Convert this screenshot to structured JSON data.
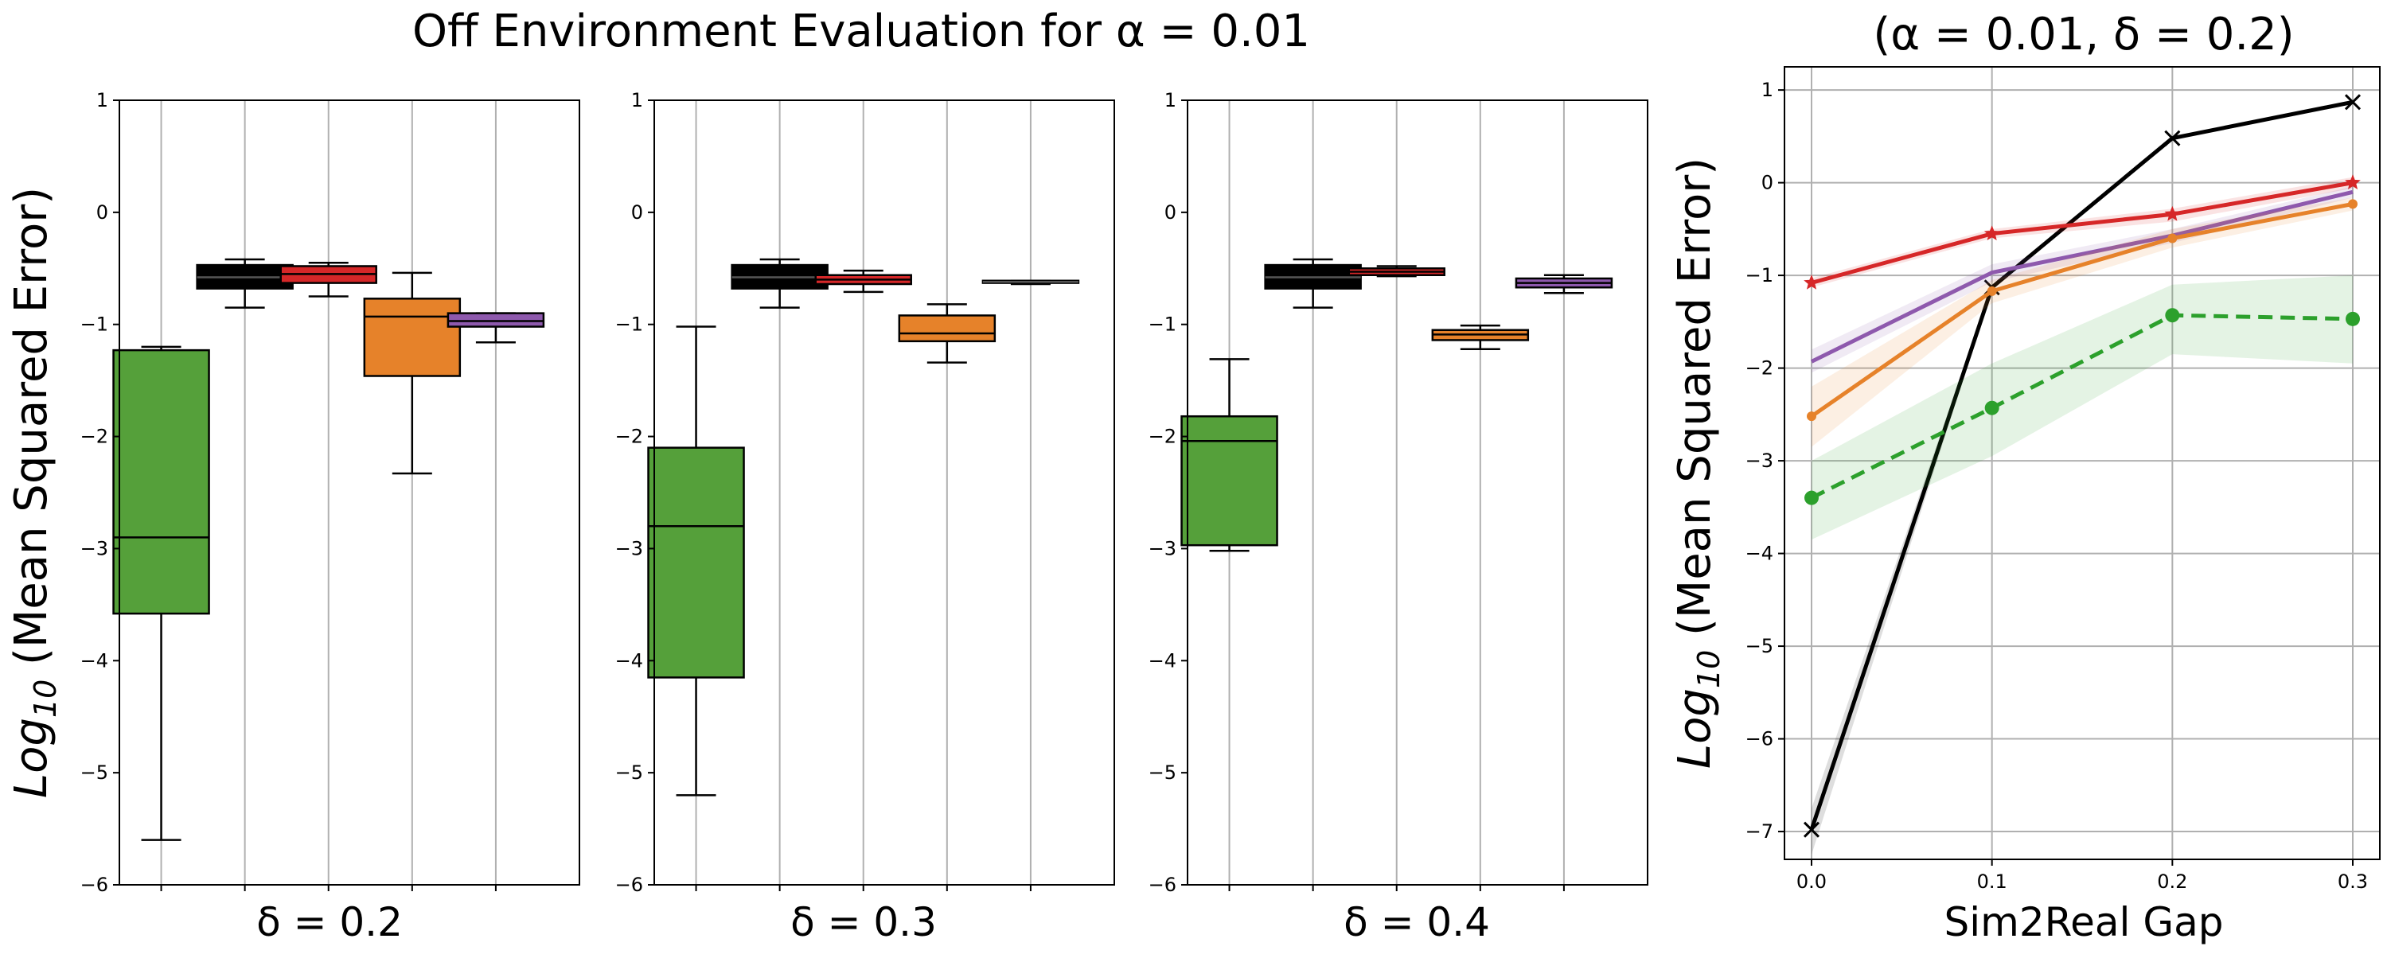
{
  "colors": {
    "black": "#000000",
    "red": "#d62728",
    "orange": "#e6822a",
    "green": "#55a03a",
    "purple": "#8e59ad",
    "grid": "#b0b0b0",
    "green_line": "#2ca02c"
  },
  "suptitle": "Off Environment Evaluation for α = 0.01",
  "chart_data": [
    {
      "type": "box",
      "xlabel": "δ = 0.2",
      "ylabel": "Log10 (Mean Squared Error)",
      "ylim": [
        -6,
        1
      ],
      "yticks": [
        "1",
        "0",
        "−1",
        "−2",
        "−3",
        "−4",
        "−5",
        "−6"
      ],
      "grid": "x",
      "boxes": [
        {
          "color": "green",
          "whislo": -5.6,
          "q1": -3.58,
          "med": -2.9,
          "q3": -1.23,
          "whishi": -1.2
        },
        {
          "color": "black",
          "whislo": -0.85,
          "q1": -0.68,
          "med": -0.58,
          "q3": -0.47,
          "whishi": -0.42
        },
        {
          "color": "red",
          "whislo": -0.75,
          "q1": -0.63,
          "med": -0.55,
          "q3": -0.48,
          "whishi": -0.45
        },
        {
          "color": "orange",
          "whislo": -2.33,
          "q1": -1.46,
          "med": -0.93,
          "q3": -0.77,
          "whishi": -0.54
        },
        {
          "color": "purple",
          "whislo": -1.16,
          "q1": -1.02,
          "med": -0.97,
          "q3": -0.9,
          "whishi": -0.9
        }
      ]
    },
    {
      "type": "box",
      "xlabel": "δ = 0.3",
      "ylim": [
        -6,
        1
      ],
      "yticks": [
        "1",
        "0",
        "−1",
        "−2",
        "−3",
        "−4",
        "−5",
        "−6"
      ],
      "grid": "x",
      "boxes": [
        {
          "color": "green",
          "whislo": -5.2,
          "q1": -4.15,
          "med": -2.8,
          "q3": -2.1,
          "whishi": -1.02
        },
        {
          "color": "black",
          "whislo": -0.85,
          "q1": -0.68,
          "med": -0.58,
          "q3": -0.47,
          "whishi": -0.42
        },
        {
          "color": "red",
          "whislo": -0.71,
          "q1": -0.64,
          "med": -0.6,
          "q3": -0.56,
          "whishi": -0.52
        },
        {
          "color": "orange",
          "whislo": -1.34,
          "q1": -1.15,
          "med": -1.08,
          "q3": -0.92,
          "whishi": -0.82
        },
        {
          "color": "black",
          "whislo": -0.64,
          "q1": -0.63,
          "med": -0.62,
          "q3": -0.61,
          "whishi": -0.61
        }
      ]
    },
    {
      "type": "box",
      "xlabel": "δ = 0.4",
      "ylim": [
        -6,
        1
      ],
      "yticks": [
        "1",
        "0",
        "−1",
        "−2",
        "−3",
        "−4",
        "−5",
        "−6"
      ],
      "grid": "x",
      "boxes": [
        {
          "color": "green",
          "whislo": -3.02,
          "q1": -2.97,
          "med": -2.04,
          "q3": -1.82,
          "whishi": -1.31
        },
        {
          "color": "black",
          "whislo": -0.85,
          "q1": -0.68,
          "med": -0.58,
          "q3": -0.47,
          "whishi": -0.42
        },
        {
          "color": "red",
          "whislo": -0.57,
          "q1": -0.56,
          "med": -0.53,
          "q3": -0.5,
          "whishi": -0.48
        },
        {
          "color": "orange",
          "whislo": -1.22,
          "q1": -1.14,
          "med": -1.09,
          "q3": -1.05,
          "whishi": -1.01
        },
        {
          "color": "purple",
          "whislo": -0.72,
          "q1": -0.67,
          "med": -0.63,
          "q3": -0.59,
          "whishi": -0.56
        }
      ]
    },
    {
      "type": "line",
      "title": "(α = 0.01, δ = 0.2)",
      "xlabel": "Sim2Real Gap",
      "ylabel": "Log10 (Mean Squared Error)",
      "x": [
        0.0,
        0.1,
        0.2,
        0.3
      ],
      "xticks": [
        "0.0",
        "0.1",
        "0.2",
        "0.3"
      ],
      "ylim": [
        -7.3,
        1.25
      ],
      "yticks": [
        "1",
        "0",
        "−1",
        "−2",
        "−3",
        "−4",
        "−5",
        "−6",
        "−7"
      ],
      "grid": "both",
      "series": [
        {
          "color": "black",
          "marker": "x",
          "dash": false,
          "values": [
            -6.98,
            -1.13,
            0.48,
            0.87
          ],
          "band": [
            [
              -7.25,
              -6.75
            ],
            [
              -1.15,
              -1.1
            ],
            [
              0.46,
              0.5
            ],
            [
              0.85,
              0.89
            ]
          ]
        },
        {
          "color": "red",
          "marker": "star",
          "dash": false,
          "values": [
            -1.08,
            -0.55,
            -0.34,
            0.0
          ],
          "band": [
            [
              -1.13,
              -1.03
            ],
            [
              -0.6,
              -0.5
            ],
            [
              -0.42,
              -0.28
            ],
            [
              -0.06,
              0.06
            ]
          ]
        },
        {
          "color": "purple",
          "marker": "none",
          "dash": false,
          "values": [
            -1.93,
            -0.97,
            -0.57,
            -0.1
          ],
          "band": [
            [
              -2.05,
              -1.8
            ],
            [
              -1.07,
              -0.88
            ],
            [
              -0.65,
              -0.5
            ],
            [
              -0.16,
              -0.04
            ]
          ]
        },
        {
          "color": "orange",
          "marker": "dot",
          "dash": false,
          "values": [
            -2.52,
            -1.17,
            -0.6,
            -0.23
          ],
          "band": [
            [
              -2.85,
              -2.2
            ],
            [
              -1.3,
              -1.05
            ],
            [
              -0.7,
              -0.5
            ],
            [
              -0.3,
              -0.16
            ]
          ]
        },
        {
          "color": "green_line",
          "marker": "dot",
          "dash": true,
          "values": [
            -3.4,
            -2.43,
            -1.43,
            -1.47
          ],
          "band": [
            [
              -3.85,
              -3.0
            ],
            [
              -2.95,
              -1.95
            ],
            [
              -1.85,
              -1.1
            ],
            [
              -1.95,
              -1.0
            ]
          ]
        }
      ]
    }
  ]
}
